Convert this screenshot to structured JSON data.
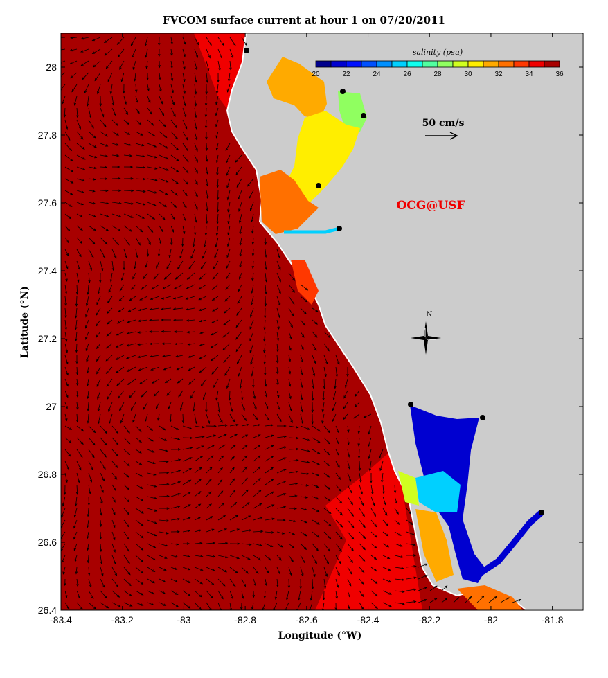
{
  "title": "FVCOM surface current at hour 1 on 07/20/2011",
  "xlabel": "Longitude (°W)",
  "ylabel": "Latitude (°N)",
  "watermark": "OCG@USF",
  "scale_arrow_label": "50 cm/s",
  "compass_label": "N",
  "colors": {
    "ocean_high": "#a80000",
    "ocean_mid": "#f00000",
    "land": "#cccccc"
  },
  "chart_data": {
    "type": "heatmap",
    "title": "FVCOM surface current at hour 1 on 07/20/2011",
    "xlabel": "Longitude (°W)",
    "ylabel": "Latitude (°N)",
    "xlim": [
      -83.4,
      -81.7
    ],
    "ylim": [
      26.4,
      28.1
    ],
    "xticks": [
      "-83.4",
      "-83.2",
      "-83",
      "-82.8",
      "-82.6",
      "-82.4",
      "-82.2",
      "-82",
      "-81.8"
    ],
    "yticks": [
      "26.4",
      "26.6",
      "26.8",
      "27",
      "27.2",
      "27.4",
      "27.6",
      "27.8",
      "28"
    ],
    "overlay": "surface current vectors",
    "colorbar": {
      "title": "salinity (psu)",
      "range": [
        20,
        36
      ],
      "tick_labels": [
        "20",
        "22",
        "24",
        "26",
        "28",
        "30",
        "32",
        "34",
        "36"
      ],
      "colors": [
        "#00008c",
        "#0000d0",
        "#0010ff",
        "#0050ff",
        "#0090ff",
        "#00d0ff",
        "#10ffee",
        "#50ffa0",
        "#90ff60",
        "#d0ff20",
        "#ffee00",
        "#ffaa00",
        "#ff7000",
        "#ff3800",
        "#f00000",
        "#a80000"
      ]
    }
  }
}
